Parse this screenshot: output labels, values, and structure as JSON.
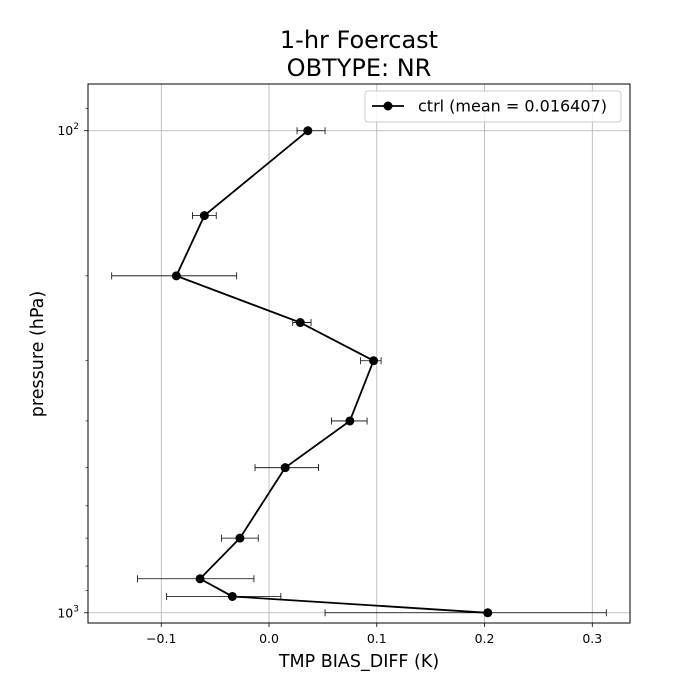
{
  "chart_data": {
    "type": "line",
    "title": [
      "1-hr Foercast",
      "OBTYPE: NR"
    ],
    "xlabel": "TMP BIAS_DIFF (K)",
    "ylabel": "pressure (hPa)",
    "xlim": [
      -0.168,
      0.335
    ],
    "ylim": [
      1050,
      80
    ],
    "y_scale": "log",
    "grid": true,
    "legend_position": "top-right",
    "x_ticks": [
      {
        "value": -0.1,
        "label": "−0.1"
      },
      {
        "value": 0.0,
        "label": "0.0"
      },
      {
        "value": 0.1,
        "label": "0.1"
      },
      {
        "value": 0.2,
        "label": "0.2"
      },
      {
        "value": 0.3,
        "label": "0.3"
      }
    ],
    "y_ticks": [
      {
        "value": 100,
        "base": "10",
        "exp": "2"
      },
      {
        "value": 1000,
        "base": "10",
        "exp": "3"
      }
    ],
    "y_minor_ticks": [
      90,
      200,
      300,
      400,
      500,
      600,
      700,
      800,
      900
    ],
    "series": [
      {
        "name": "ctrl (mean = 0.016407)",
        "color": "#000000",
        "marker": "circle",
        "points": [
          {
            "pressure": 100,
            "value": 0.036,
            "err_low": 0.026,
            "err_high": 0.052
          },
          {
            "pressure": 150,
            "value": -0.06,
            "err_low": -0.071,
            "err_high": -0.049
          },
          {
            "pressure": 200,
            "value": -0.086,
            "err_low": -0.146,
            "err_high": -0.03
          },
          {
            "pressure": 250,
            "value": 0.029,
            "err_low": 0.022,
            "err_high": 0.039
          },
          {
            "pressure": 300,
            "value": 0.097,
            "err_low": 0.085,
            "err_high": 0.104
          },
          {
            "pressure": 400,
            "value": 0.075,
            "err_low": 0.058,
            "err_high": 0.091
          },
          {
            "pressure": 500,
            "value": 0.015,
            "err_low": -0.013,
            "err_high": 0.046
          },
          {
            "pressure": 700,
            "value": -0.027,
            "err_low": -0.044,
            "err_high": -0.01
          },
          {
            "pressure": 850,
            "value": -0.064,
            "err_low": -0.122,
            "err_high": -0.014
          },
          {
            "pressure": 925,
            "value": -0.034,
            "err_low": -0.095,
            "err_high": 0.011
          },
          {
            "pressure": 1000,
            "value": 0.203,
            "err_low": 0.052,
            "err_high": 0.313
          }
        ]
      }
    ]
  }
}
